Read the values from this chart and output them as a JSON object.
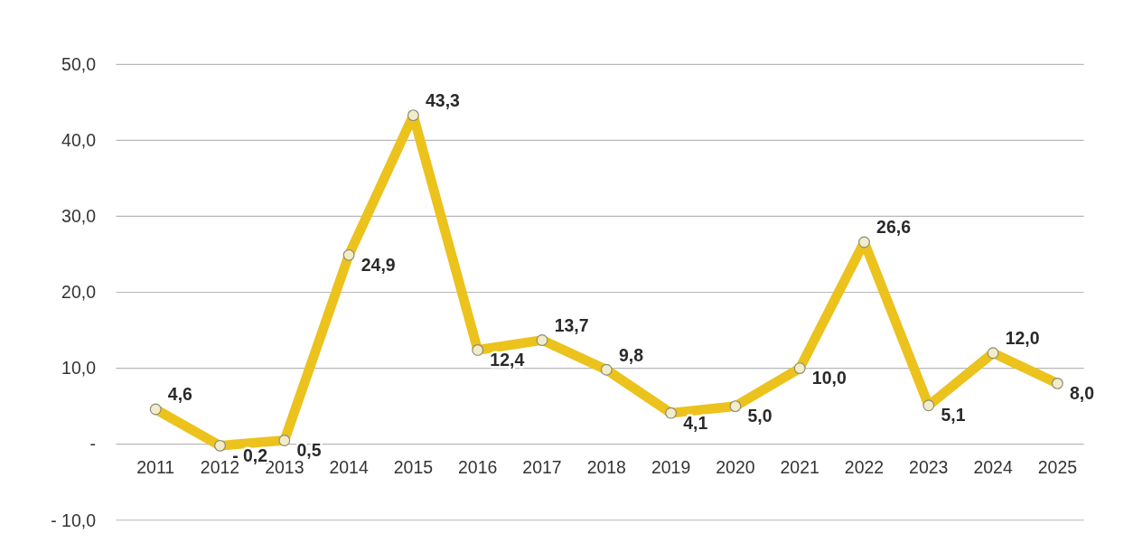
{
  "chart_data": {
    "type": "line",
    "categories": [
      "2011",
      "2012",
      "2013",
      "2014",
      "2015",
      "2016",
      "2017",
      "2018",
      "2019",
      "2020",
      "2021",
      "2022",
      "2023",
      "2024",
      "2025"
    ],
    "series": [
      {
        "color": "#ecc21c",
        "values": [
          4.6,
          -0.2,
          0.5,
          24.9,
          43.3,
          12.4,
          13.7,
          9.8,
          4.1,
          5.0,
          10.0,
          26.6,
          5.1,
          12.0,
          8.0
        ],
        "value_labels": [
          "4,6",
          "- 0,2",
          "0,5",
          "24,9",
          "43,3",
          "12,4",
          "13,7",
          "9,8",
          "4,1",
          "5,0",
          "10,0",
          "26,6",
          "5,1",
          "12,0",
          "8,0"
        ]
      }
    ],
    "ylim": [
      -10,
      50
    ],
    "yticks": [
      {
        "value": -10,
        "label": "- 10,0"
      },
      {
        "value": 0,
        "label": "-"
      },
      {
        "value": 10,
        "label": "10,0"
      },
      {
        "value": 20,
        "label": "20,0"
      },
      {
        "value": 30,
        "label": "30,0"
      },
      {
        "value": 40,
        "label": "40,0"
      },
      {
        "value": 50,
        "label": "50,0"
      }
    ],
    "grid": "y",
    "marker": "circle",
    "line_style": "solid"
  }
}
